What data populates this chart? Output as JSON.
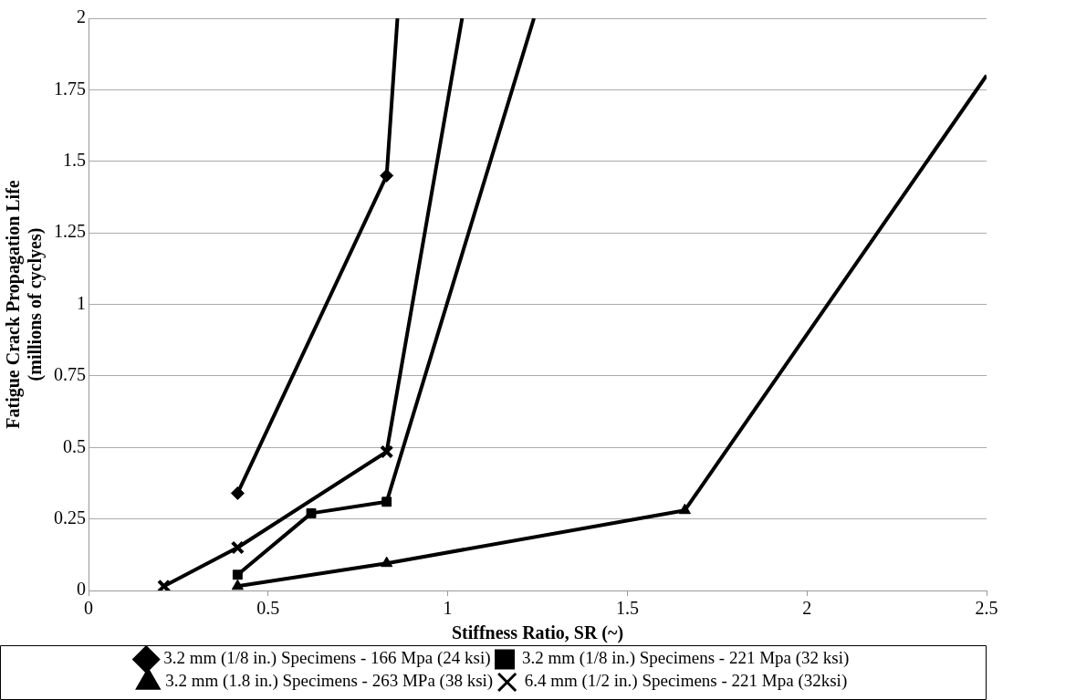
{
  "chart_data": {
    "type": "line",
    "xlabel": "Stiffness Ratio, SR (~)",
    "ylabel": "Fatigue Crack Propagation Life\n(millions of cyclyes)",
    "xlim": [
      0,
      2.5
    ],
    "xticks": [
      0,
      0.5,
      1,
      1.5,
      2,
      2.5
    ],
    "ylim": [
      0,
      2
    ],
    "yticks": [
      0,
      0.25,
      0.5,
      0.75,
      1,
      1.25,
      1.5,
      1.75,
      2
    ],
    "grid": "y",
    "legend": "bottom",
    "line_style": "solid",
    "series": [
      {
        "name": "3.2 mm (1/8 in.) Specimens - 166 Mpa (24 ksi)",
        "color": "#000000",
        "marker": "diamond",
        "x": [
          0.415,
          0.83,
          0.86
        ],
        "values": [
          0.34,
          1.45,
          2
        ]
      },
      {
        "name": "3.2 mm (1/8 in.) Specimens - 221 Mpa (32 ksi)",
        "color": "#000000",
        "marker": "square",
        "x": [
          0.415,
          0.62,
          0.83,
          1.24
        ],
        "values": [
          0.055,
          0.27,
          0.31,
          2
        ]
      },
      {
        "name": "3.2 mm (1.8 in.) Specimens - 263 MPa (38 ksi)",
        "color": "#000000",
        "marker": "triangle",
        "x": [
          0.415,
          0.83,
          1.66,
          2.5
        ],
        "values": [
          0.015,
          0.095,
          0.28,
          1.8
        ]
      },
      {
        "name": "6.4 mm (1/2 in.) Specimens - 221 Mpa (32ksi)",
        "color": "#000000",
        "marker": "cross",
        "x": [
          0.21,
          0.415,
          0.83,
          1.04
        ],
        "values": [
          0.015,
          0.15,
          0.485,
          2
        ]
      }
    ]
  }
}
